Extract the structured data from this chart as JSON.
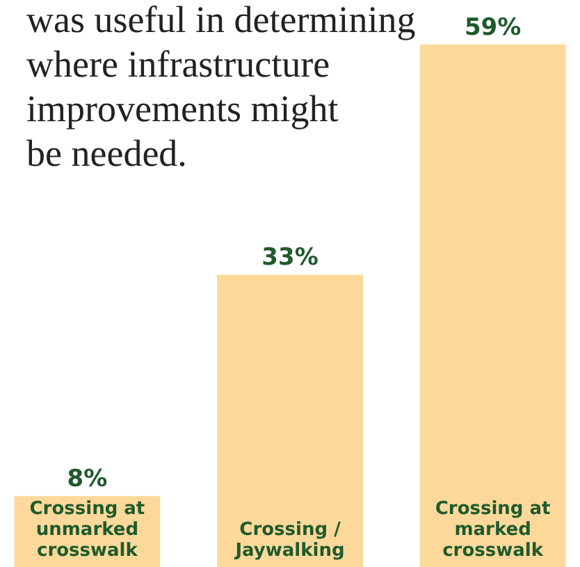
{
  "chart_data": {
    "type": "bar",
    "title": "was useful in determining\nwhere infrastructure\nimprovements might\nbe needed.",
    "categories": [
      "Crossing at\nunmarked\ncrosswalk",
      "Crossing /\nJaywalking",
      "Crossing at\nmarked\ncrosswalk"
    ],
    "values": [
      8,
      33,
      59
    ],
    "value_labels": [
      "8%",
      "33%",
      "59%"
    ],
    "color": "#fcd99b"
  }
}
